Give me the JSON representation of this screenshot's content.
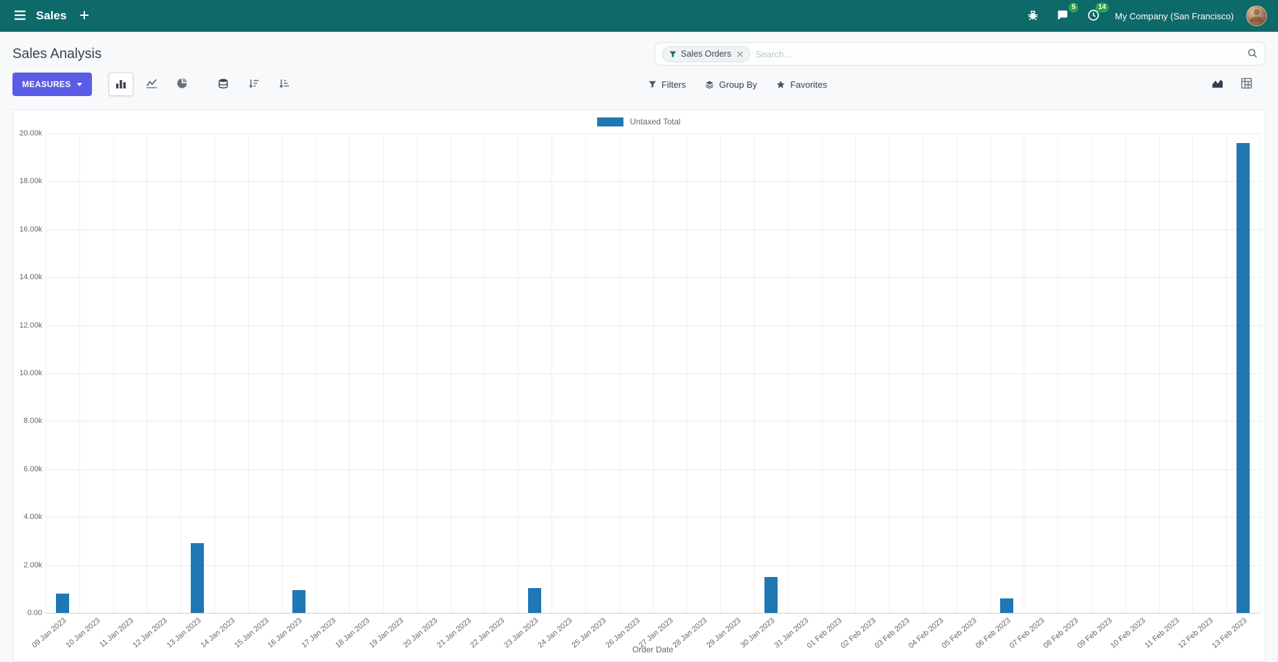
{
  "navbar": {
    "app_name": "Sales",
    "messages_badge": "5",
    "activities_badge": "14",
    "company": "My Company (San Francisco)"
  },
  "control_panel": {
    "title": "Sales Analysis",
    "search": {
      "facet": "Sales Orders",
      "placeholder": "Search..."
    },
    "measures_label": "MEASURES",
    "filters_label": "Filters",
    "group_by_label": "Group By",
    "favorites_label": "Favorites"
  },
  "colors": {
    "navbar": "#0e6969",
    "primary_button": "#5b5ce6",
    "bar": "#1f77b4",
    "badge": "#28a745",
    "grid": "#e7e9ea"
  },
  "chart_data": {
    "type": "bar",
    "title": "",
    "xlabel": "Order Date",
    "ylabel": "",
    "ylim": [
      0,
      20000
    ],
    "grid": true,
    "legend_position": "top-center",
    "y_ticks": [
      "0.00",
      "2.00k",
      "4.00k",
      "6.00k",
      "8.00k",
      "10.00k",
      "12.00k",
      "14.00k",
      "16.00k",
      "18.00k",
      "20.00k"
    ],
    "categories": [
      "09 Jan 2023",
      "10 Jan 2023",
      "11 Jan 2023",
      "12 Jan 2023",
      "13 Jan 2023",
      "14 Jan 2023",
      "15 Jan 2023",
      "16 Jan 2023",
      "17 Jan 2023",
      "18 Jan 2023",
      "19 Jan 2023",
      "20 Jan 2023",
      "21 Jan 2023",
      "22 Jan 2023",
      "23 Jan 2023",
      "24 Jan 2023",
      "25 Jan 2023",
      "26 Jan 2023",
      "27 Jan 2023",
      "28 Jan 2023",
      "29 Jan 2023",
      "30 Jan 2023",
      "31 Jan 2023",
      "01 Feb 2023",
      "02 Feb 2023",
      "03 Feb 2023",
      "04 Feb 2023",
      "05 Feb 2023",
      "06 Feb 2023",
      "07 Feb 2023",
      "08 Feb 2023",
      "09 Feb 2023",
      "10 Feb 2023",
      "11 Feb 2023",
      "12 Feb 2023",
      "13 Feb 2023"
    ],
    "series": [
      {
        "name": "Untaxed Total",
        "color": "#1f77b4",
        "values": [
          800,
          0,
          0,
          0,
          2900,
          0,
          0,
          950,
          0,
          0,
          0,
          0,
          0,
          0,
          1050,
          0,
          0,
          0,
          0,
          0,
          0,
          1500,
          0,
          0,
          0,
          0,
          0,
          0,
          620,
          0,
          0,
          0,
          0,
          0,
          0,
          19600
        ]
      }
    ]
  }
}
